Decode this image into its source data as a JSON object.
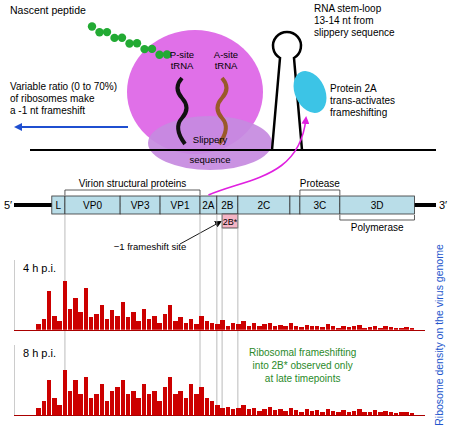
{
  "schematic": {
    "nascent_peptide": "Nascent peptide",
    "p_site": [
      "P-site",
      "tRNA"
    ],
    "a_site": [
      "A-site",
      "tRNA"
    ],
    "frameshift_ratio": [
      "Variable ratio (0 to 70%)",
      "of ribosomes make",
      "a -1 nt frameshift"
    ],
    "slippery": [
      "Slippery",
      "sequence"
    ],
    "stem_loop": [
      "RNA stem-loop",
      "13-14 nt from",
      "slippery sequence"
    ],
    "protein": [
      "Protein 2A",
      "trans-activates",
      "frameshifting"
    ]
  },
  "genome": {
    "five_prime": "5′",
    "three_prime": "3′",
    "segments": [
      {
        "label": "L",
        "start": 700,
        "end": 950
      },
      {
        "label": "VP0",
        "start": 950,
        "end": 2000
      },
      {
        "label": "VP3",
        "start": 2000,
        "end": 2760
      },
      {
        "label": "VP1",
        "start": 2760,
        "end": 3520
      },
      {
        "label": "2A",
        "start": 3520,
        "end": 3840
      },
      {
        "label": "2B",
        "start": 3840,
        "end": 4240
      },
      {
        "label": "2C",
        "start": 4240,
        "end": 5230
      },
      {
        "label": null,
        "start": 5230,
        "end": 5420
      },
      {
        "label": "3C",
        "start": 5420,
        "end": 6180
      },
      {
        "label": "3D",
        "start": 6180,
        "end": 7600
      }
    ],
    "frameshift_protein": {
      "label": "2B*",
      "start": 3940,
      "end": 4240
    },
    "frameshift_site": "−1 frameshift site",
    "brackets": [
      {
        "label": "Virion structural proteins",
        "from": "VP0",
        "to": "VP1",
        "side": "top"
      },
      {
        "label": "Protease",
        "from": "3C",
        "to": "3C",
        "side": "top"
      },
      {
        "label": "Polymerase",
        "from": "3D",
        "to": "3D",
        "side": "bottom"
      }
    ]
  },
  "track_label": "Ribosome density on the virus genome",
  "chart_data": [
    {
      "type": "bar",
      "title": "4 h p.i.",
      "color": "#cc0000",
      "xlim": [
        0,
        7800
      ],
      "ylim": [
        0,
        100
      ],
      "tick_labels": false,
      "x": [
        50,
        150,
        250,
        350,
        450,
        550,
        650,
        750,
        850,
        950,
        1050,
        1150,
        1250,
        1350,
        1450,
        1550,
        1650,
        1750,
        1850,
        1950,
        2050,
        2150,
        2250,
        2350,
        2450,
        2550,
        2650,
        2750,
        2850,
        2950,
        3050,
        3150,
        3250,
        3350,
        3450,
        3550,
        3650,
        3750,
        3850,
        3950,
        4050,
        4150,
        4250,
        4350,
        4450,
        4550,
        4650,
        4750,
        4850,
        4950,
        5050,
        5150,
        5250,
        5350,
        5450,
        5550,
        5650,
        5750,
        5850,
        5950,
        6050,
        6150,
        6250,
        6350,
        6450,
        6550,
        6650,
        6750,
        6850,
        6950,
        7050,
        7150,
        7250,
        7350,
        7450,
        7550,
        7650,
        7750
      ],
      "values": [
        0,
        0,
        0,
        0,
        8,
        15,
        55,
        20,
        12,
        70,
        30,
        45,
        25,
        60,
        18,
        22,
        35,
        15,
        28,
        20,
        40,
        18,
        25,
        12,
        30,
        15,
        20,
        10,
        22,
        35,
        12,
        18,
        10,
        15,
        8,
        20,
        12,
        10,
        8,
        14,
        6,
        10,
        8,
        12,
        6,
        9,
        5,
        8,
        10,
        6,
        7,
        5,
        9,
        6,
        4,
        7,
        5,
        6,
        4,
        8,
        5,
        3,
        6,
        4,
        5,
        7,
        3,
        4,
        6,
        3,
        5,
        4,
        2,
        3,
        4,
        2,
        0,
        0
      ]
    },
    {
      "type": "bar",
      "title": "8 h p.i.",
      "color": "#cc0000",
      "xlim": [
        0,
        7800
      ],
      "ylim": [
        0,
        100
      ],
      "tick_labels": false,
      "annotation": [
        "Ribosomal frameshifting",
        "into 2B* observed only",
        "at late timepoints"
      ],
      "x": [
        50,
        150,
        250,
        350,
        450,
        550,
        650,
        750,
        850,
        950,
        1050,
        1150,
        1250,
        1350,
        1450,
        1550,
        1650,
        1750,
        1850,
        1950,
        2050,
        2150,
        2250,
        2350,
        2450,
        2550,
        2650,
        2750,
        2850,
        2950,
        3050,
        3150,
        3250,
        3350,
        3450,
        3550,
        3650,
        3750,
        3850,
        3950,
        4050,
        4150,
        4250,
        4350,
        4450,
        4550,
        4650,
        4750,
        4850,
        4950,
        5050,
        5150,
        5250,
        5350,
        5450,
        5550,
        5650,
        5750,
        5850,
        5950,
        6050,
        6150,
        6250,
        6350,
        6450,
        6550,
        6650,
        6750,
        6850,
        6950,
        7050,
        7150,
        7250,
        7350,
        7450,
        7550,
        7650,
        7750
      ],
      "values": [
        0,
        0,
        0,
        0,
        10,
        20,
        50,
        25,
        15,
        65,
        35,
        50,
        30,
        55,
        25,
        30,
        45,
        20,
        35,
        40,
        50,
        30,
        35,
        25,
        45,
        30,
        35,
        20,
        40,
        55,
        30,
        35,
        25,
        45,
        30,
        40,
        25,
        20,
        15,
        10,
        12,
        8,
        10,
        14,
        8,
        10,
        6,
        9,
        12,
        7,
        8,
        6,
        10,
        7,
        5,
        9,
        6,
        7,
        5,
        9,
        6,
        4,
        7,
        5,
        6,
        8,
        4,
        5,
        7,
        4,
        6,
        5,
        3,
        4,
        5,
        3,
        0,
        0
      ]
    }
  ]
}
